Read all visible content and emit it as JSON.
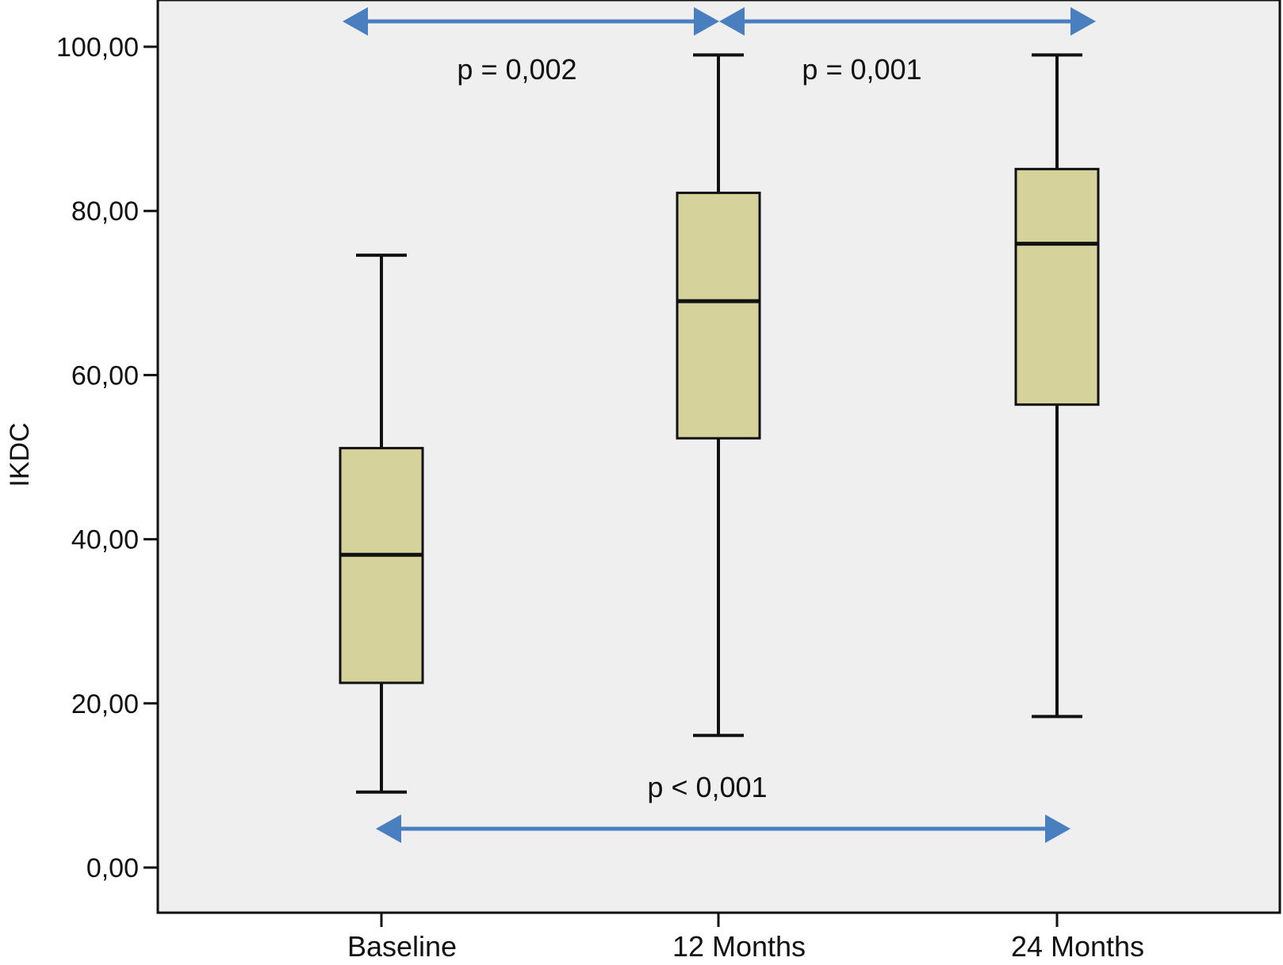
{
  "chart_data": {
    "type": "box",
    "ylabel": "IKDC",
    "xlabel": "",
    "ylim": [
      -5,
      105
    ],
    "yticks": [
      0,
      20,
      40,
      60,
      80,
      100
    ],
    "ytick_labels": [
      "0,00",
      "20,00",
      "40,00",
      "60,00",
      "80,00",
      "100,00"
    ],
    "categories": [
      "Baseline",
      "12 Months",
      "24 Months"
    ],
    "boxes": [
      {
        "category": "Baseline",
        "whisker_low": 9.2,
        "q1": 22.5,
        "median": 38.1,
        "q3": 51.1,
        "whisker_high": 74.6
      },
      {
        "category": "12 Months",
        "whisker_low": 16.1,
        "q1": 52.3,
        "median": 69.0,
        "q3": 82.2,
        "whisker_high": 99.0
      },
      {
        "category": "24 Months",
        "whisker_low": 18.4,
        "q1": 56.4,
        "median": 76.0,
        "q3": 85.1,
        "whisker_high": 99.0
      }
    ],
    "comparisons": [
      {
        "from": "Baseline",
        "to": "12 Months",
        "label": "p = 0,002"
      },
      {
        "from": "12 Months",
        "to": "24 Months",
        "label": "p = 0,001"
      },
      {
        "from": "Baseline",
        "to": "24 Months",
        "label": "p < 0,001"
      }
    ],
    "colors": {
      "box_fill": "#d6d29b",
      "box_stroke": "#111111",
      "plot_background": "#efefef",
      "arrow": "#4a7fbf"
    },
    "grid": false,
    "legend": "none"
  }
}
